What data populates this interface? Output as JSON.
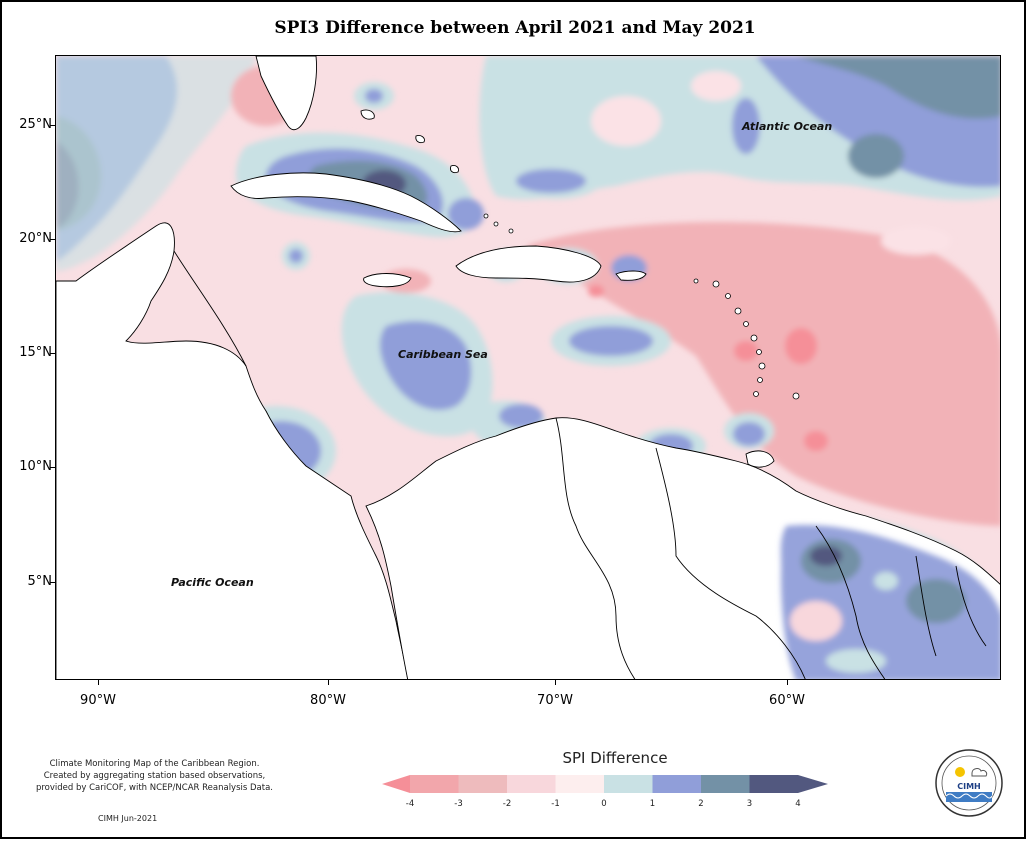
{
  "title": "SPI3 Difference between April 2021 and May 2021",
  "map": {
    "lat_labels": [
      {
        "label": "25°N",
        "value": 25
      },
      {
        "label": "20°N",
        "value": 20
      },
      {
        "label": "15°N",
        "value": 15
      },
      {
        "label": "10°N",
        "value": 10
      },
      {
        "label": "5°N",
        "value": 5
      }
    ],
    "lon_labels": [
      {
        "label": "90°W",
        "value": -90
      },
      {
        "label": "80°W",
        "value": -80
      },
      {
        "label": "70°W",
        "value": -70
      },
      {
        "label": "60°W",
        "value": -60
      }
    ],
    "places": {
      "atlantic": "Atlantic Ocean",
      "caribbean": "Caribbean Sea",
      "pacific": "Pacific Ocean"
    }
  },
  "legend": {
    "title": "SPI Difference",
    "ticks": [
      "-4",
      "-3",
      "-2",
      "-1",
      "0",
      "1",
      "2",
      "3",
      "4"
    ],
    "colors": [
      "#f58f98",
      "#f2a6ab",
      "#eebbbd",
      "#f8d7dc",
      "#fdeeee",
      "#c9e1e4",
      "#909ed9",
      "#7391a6",
      "#52587f"
    ]
  },
  "footer": {
    "lines": [
      "Climate Monitoring Map of the Caribbean Region.",
      "Created by aggregating station based observations,",
      "provided by CariCOF, with NCEP/NCAR Reanalysis Data."
    ],
    "credit": "CIMH Jun-2021"
  },
  "logo": {
    "abbr": "CIMH"
  }
}
